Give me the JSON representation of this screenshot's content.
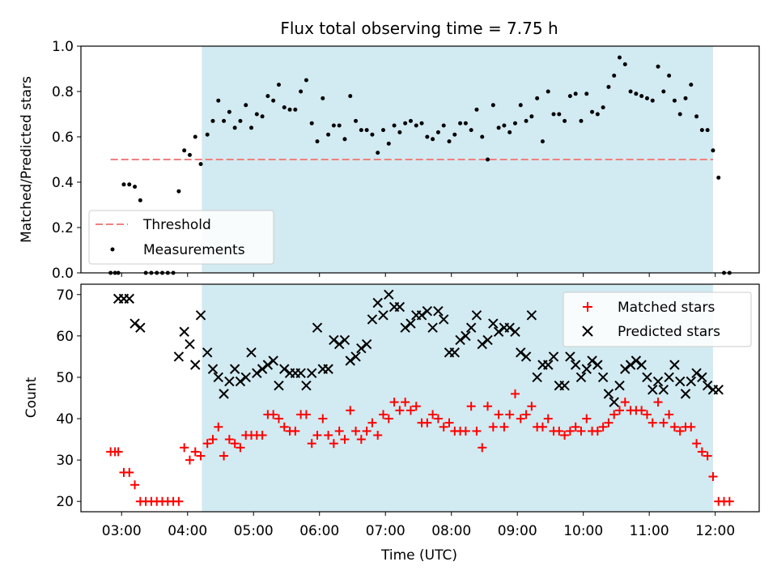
{
  "title": "Flux total observing time = 7.75 h",
  "x_ticks": [
    "03:00",
    "04:00",
    "05:00",
    "06:00",
    "07:00",
    "08:00",
    "09:00",
    "10:00",
    "11:00",
    "12:00"
  ],
  "chart_data": [
    {
      "type": "scatter",
      "ylabel": "Matched/Predicted stars",
      "xlim": [
        "02:23",
        "12:40"
      ],
      "ylim": [
        0,
        1.0
      ],
      "y_ticks": [
        "0.0",
        "0.2",
        "0.4",
        "0.6",
        "0.8",
        "1.0"
      ],
      "observing_window": [
        "04:13",
        "11:58"
      ],
      "window_color": "#add8e6",
      "threshold": {
        "label": "Threshold",
        "value": 0.5,
        "x_range": [
          "02:50",
          "11:58"
        ],
        "color": "#f08080",
        "style": "dashed"
      },
      "legend": "lower-left",
      "series": [
        {
          "name": "Measurements",
          "marker": "dot",
          "color": "#000000",
          "x": [
            "02:50",
            "02:54",
            "02:57",
            "03:02",
            "03:07",
            "03:12",
            "03:17",
            "03:22",
            "03:27",
            "03:32",
            "03:37",
            "03:42",
            "03:47",
            "03:52",
            "03:57",
            "04:02",
            "04:07",
            "04:12",
            "04:18",
            "04:23",
            "04:28",
            "04:33",
            "04:38",
            "04:43",
            "04:48",
            "04:53",
            "04:58",
            "05:03",
            "05:08",
            "05:13",
            "05:18",
            "05:23",
            "05:28",
            "05:33",
            "05:38",
            "05:43",
            "05:48",
            "05:53",
            "05:58",
            "06:03",
            "06:08",
            "06:13",
            "06:18",
            "06:23",
            "06:28",
            "06:33",
            "06:38",
            "06:43",
            "06:48",
            "06:53",
            "06:58",
            "07:03",
            "07:08",
            "07:13",
            "07:18",
            "07:23",
            "07:28",
            "07:33",
            "07:38",
            "07:43",
            "07:48",
            "07:53",
            "07:58",
            "08:03",
            "08:08",
            "08:13",
            "08:18",
            "08:23",
            "08:28",
            "08:33",
            "08:38",
            "08:43",
            "08:48",
            "08:53",
            "08:58",
            "09:03",
            "09:08",
            "09:13",
            "09:18",
            "09:23",
            "09:28",
            "09:33",
            "09:38",
            "09:43",
            "09:48",
            "09:53",
            "09:58",
            "10:03",
            "10:08",
            "10:13",
            "10:18",
            "10:23",
            "10:28",
            "10:33",
            "10:38",
            "10:43",
            "10:48",
            "10:53",
            "10:58",
            "11:03",
            "11:08",
            "11:13",
            "11:18",
            "11:23",
            "11:28",
            "11:33",
            "11:38",
            "11:43",
            "11:48",
            "11:53",
            "11:58",
            "12:03",
            "12:08",
            "12:13"
          ],
          "y": [
            0,
            0,
            0,
            0.39,
            0.39,
            0.38,
            0.32,
            0,
            0,
            0,
            0,
            0,
            0,
            0.36,
            0.54,
            0.52,
            0.6,
            0.48,
            0.61,
            0.67,
            0.76,
            0.67,
            0.71,
            0.64,
            0.67,
            0.74,
            0.64,
            0.7,
            0.69,
            0.78,
            0.76,
            0.83,
            0.73,
            0.72,
            0.72,
            0.8,
            0.85,
            0.66,
            0.58,
            0.77,
            0.61,
            0.65,
            0.65,
            0.59,
            0.78,
            0.67,
            0.63,
            0.63,
            0.61,
            0.53,
            0.63,
            0.57,
            0.65,
            0.62,
            0.66,
            0.67,
            0.65,
            0.66,
            0.6,
            0.59,
            0.62,
            0.65,
            0.58,
            0.61,
            0.66,
            0.66,
            0.63,
            0.72,
            0.6,
            0.5,
            0.74,
            0.64,
            0.65,
            0.62,
            0.66,
            0.74,
            0.67,
            0.69,
            0.77,
            0.58,
            0.8,
            0.7,
            0.7,
            0.67,
            0.78,
            0.79,
            0.67,
            0.79,
            0.71,
            0.7,
            0.73,
            0.82,
            0.87,
            0.95,
            0.92,
            0.8,
            0.79,
            0.78,
            0.77,
            0.76,
            0.91,
            0.8,
            0.87,
            0.76,
            0.7,
            0.77,
            0.83,
            0.69,
            0.63,
            0.63,
            0.54,
            0.42,
            0,
            0
          ]
        }
      ]
    },
    {
      "type": "scatter",
      "xlabel": "Time (UTC)",
      "ylabel": "Count",
      "xlim": [
        "02:23",
        "12:40"
      ],
      "ylim": [
        17.5,
        72.5
      ],
      "y_ticks": [
        "20",
        "30",
        "40",
        "50",
        "60",
        "70"
      ],
      "observing_window": [
        "04:13",
        "11:58"
      ],
      "window_color": "#add8e6",
      "legend": "top-right",
      "series": [
        {
          "name": "Matched stars",
          "marker": "plus",
          "color": "#ff0000",
          "x": [
            "02:50",
            "02:54",
            "02:57",
            "03:02",
            "03:07",
            "03:12",
            "03:17",
            "03:22",
            "03:27",
            "03:32",
            "03:37",
            "03:42",
            "03:47",
            "03:52",
            "03:57",
            "04:02",
            "04:07",
            "04:12",
            "04:18",
            "04:23",
            "04:28",
            "04:33",
            "04:38",
            "04:43",
            "04:48",
            "04:53",
            "04:58",
            "05:03",
            "05:08",
            "05:13",
            "05:18",
            "05:23",
            "05:28",
            "05:33",
            "05:38",
            "05:43",
            "05:48",
            "05:53",
            "05:58",
            "06:03",
            "06:08",
            "06:13",
            "06:18",
            "06:23",
            "06:28",
            "06:33",
            "06:38",
            "06:43",
            "06:48",
            "06:53",
            "06:58",
            "07:03",
            "07:08",
            "07:13",
            "07:18",
            "07:23",
            "07:28",
            "07:33",
            "07:38",
            "07:43",
            "07:48",
            "07:53",
            "07:58",
            "08:03",
            "08:08",
            "08:13",
            "08:18",
            "08:23",
            "08:28",
            "08:33",
            "08:38",
            "08:43",
            "08:48",
            "08:53",
            "08:58",
            "09:03",
            "09:08",
            "09:13",
            "09:18",
            "09:23",
            "09:28",
            "09:33",
            "09:38",
            "09:43",
            "09:48",
            "09:53",
            "09:58",
            "10:03",
            "10:08",
            "10:13",
            "10:18",
            "10:23",
            "10:28",
            "10:33",
            "10:38",
            "10:43",
            "10:48",
            "10:53",
            "10:58",
            "11:03",
            "11:08",
            "11:13",
            "11:18",
            "11:23",
            "11:28",
            "11:33",
            "11:38",
            "11:43",
            "11:48",
            "11:53",
            "11:58",
            "12:03",
            "12:08",
            "12:13"
          ],
          "y": [
            32,
            32,
            32,
            27,
            27,
            24,
            20,
            20,
            20,
            20,
            20,
            20,
            20,
            20,
            33,
            30,
            32,
            31,
            34,
            35,
            38,
            31,
            35,
            34,
            33,
            36,
            36,
            36,
            36,
            41,
            41,
            40,
            38,
            37,
            37,
            41,
            41,
            34,
            36,
            40,
            36,
            34,
            37,
            35,
            42,
            37,
            35,
            37,
            39,
            36,
            41,
            40,
            44,
            42,
            44,
            42,
            43,
            39,
            39,
            41,
            40,
            38,
            39,
            37,
            37,
            37,
            43,
            37,
            33,
            43,
            38,
            41,
            38,
            41,
            46,
            40,
            41,
            43,
            38,
            38,
            40,
            37,
            37,
            36,
            37,
            38,
            37,
            40,
            37,
            37,
            38,
            39,
            41,
            42,
            44,
            42,
            42,
            42,
            41,
            39,
            44,
            39,
            41,
            38,
            37,
            38,
            38,
            34,
            32,
            31,
            26,
            20,
            20,
            20
          ]
        },
        {
          "name": "Predicted stars",
          "marker": "x",
          "color": "#000000",
          "x": [
            "02:57",
            "03:02",
            "03:07",
            "03:12",
            "03:17",
            "03:52",
            "03:57",
            "04:02",
            "04:07",
            "04:12",
            "04:18",
            "04:23",
            "04:28",
            "04:33",
            "04:38",
            "04:43",
            "04:48",
            "04:53",
            "04:58",
            "05:03",
            "05:08",
            "05:13",
            "05:18",
            "05:23",
            "05:28",
            "05:33",
            "05:38",
            "05:43",
            "05:48",
            "05:53",
            "05:58",
            "06:03",
            "06:08",
            "06:13",
            "06:18",
            "06:23",
            "06:28",
            "06:33",
            "06:38",
            "06:43",
            "06:48",
            "06:53",
            "06:58",
            "07:03",
            "07:08",
            "07:13",
            "07:18",
            "07:23",
            "07:28",
            "07:33",
            "07:38",
            "07:43",
            "07:48",
            "07:53",
            "07:58",
            "08:03",
            "08:08",
            "08:13",
            "08:18",
            "08:23",
            "08:28",
            "08:33",
            "08:38",
            "08:43",
            "08:48",
            "08:53",
            "08:58",
            "09:03",
            "09:08",
            "09:13",
            "09:18",
            "09:23",
            "09:28",
            "09:33",
            "09:38",
            "09:43",
            "09:48",
            "09:53",
            "09:58",
            "10:03",
            "10:08",
            "10:13",
            "10:18",
            "10:23",
            "10:28",
            "10:33",
            "10:38",
            "10:43",
            "10:48",
            "10:53",
            "10:58",
            "11:03",
            "11:08",
            "11:13",
            "11:18",
            "11:23",
            "11:28",
            "11:33",
            "11:38",
            "11:43",
            "11:48",
            "11:53",
            "11:58",
            "12:03"
          ],
          "y": [
            69,
            69,
            69,
            63,
            62,
            55,
            61,
            58,
            53,
            65,
            56,
            52,
            50,
            46,
            49,
            52,
            49,
            50,
            56,
            51,
            52,
            53,
            54,
            48,
            52,
            51,
            51,
            51,
            48,
            51,
            62,
            52,
            52,
            59,
            58,
            59,
            54,
            55,
            57,
            58,
            64,
            68,
            65,
            70,
            67,
            67,
            62,
            63,
            65,
            65,
            66,
            62,
            66,
            64,
            56,
            56,
            59,
            60,
            62,
            65,
            58,
            59,
            63,
            61,
            62,
            62,
            61,
            56,
            55,
            65,
            50,
            53,
            53,
            55,
            48,
            48,
            55,
            53,
            50,
            52,
            54,
            53,
            50,
            46,
            44,
            48,
            52,
            53,
            54,
            53,
            50,
            47,
            49,
            47,
            50,
            53,
            49,
            46,
            49,
            51,
            50,
            48,
            47,
            47
          ]
        }
      ]
    }
  ]
}
